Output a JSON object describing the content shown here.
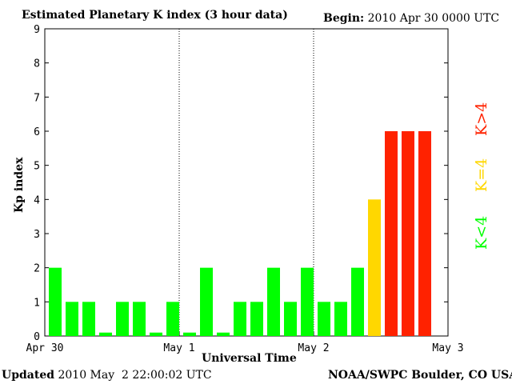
{
  "header": {
    "title": "Estimated Planetary K index (3 hour data)",
    "begin_label": "Begin:",
    "begin_value": " 2010 Apr 30 0000 UTC"
  },
  "footer": {
    "updated_label": "Updated",
    "updated_value": " 2010 May  2 22:00:02 UTC",
    "credit": "NOAA/SWPC Boulder, CO USA"
  },
  "legend": {
    "low": "K<4",
    "equal": "K=4",
    "high": "K>4",
    "low_color": "#00ff00",
    "equal_color": "#ffd700",
    "high_color": "#ff2200"
  },
  "chart_data": {
    "type": "bar",
    "title": "Estimated Planetary K index (3 hour data)",
    "xlabel": "Universal Time",
    "ylabel": "Kp index",
    "ylim": [
      0,
      9
    ],
    "yticks": [
      "0",
      "1",
      "2",
      "3",
      "4",
      "5",
      "6",
      "7",
      "8",
      "9"
    ],
    "xticks": [
      "Apr 30",
      "May 1",
      "May 2",
      "May 3"
    ],
    "bars_per_day": 8,
    "values": [
      2,
      1,
      1,
      0.1,
      1,
      1,
      0.1,
      1,
      0.1,
      2,
      0.1,
      1,
      1,
      2,
      1,
      2,
      1,
      1,
      2,
      4,
      6,
      6,
      6
    ],
    "day_separators": "dotted",
    "grid": false
  }
}
